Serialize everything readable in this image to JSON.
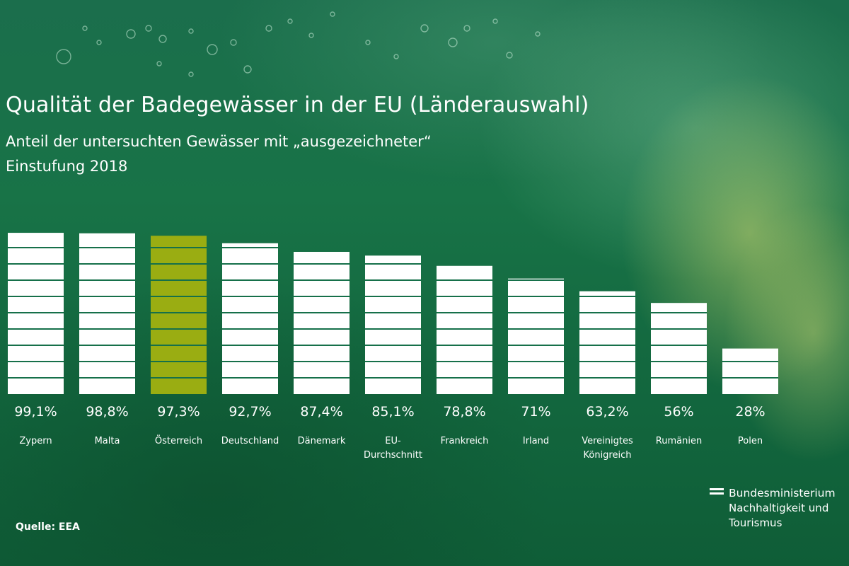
{
  "title": "Qualität der Badegewässer in der EU (Länderauswahl)",
  "subtitle_lines": [
    "Anteil der untersuchten Gewässer mit „ausgezeichneter“",
    "Einstufung 2018"
  ],
  "source": "Quelle: EEA",
  "logo": {
    "lines": [
      "Bundesministerium",
      "Nachhaltigkeit und",
      "Tourismus"
    ]
  },
  "colors": {
    "bar": "#ffffff",
    "highlight": "#9aad12",
    "background": "#16704a",
    "text": "#ffffff"
  },
  "chart_data": {
    "type": "bar",
    "title": "Qualität der Badegewässer in der EU (Länderauswahl)",
    "categories": [
      [
        "Zypern"
      ],
      [
        "Malta"
      ],
      [
        "Österreich"
      ],
      [
        "Deutschland"
      ],
      [
        "Dänemark"
      ],
      [
        "EU-",
        "Durchschnitt"
      ],
      [
        "Frankreich"
      ],
      [
        "Irland"
      ],
      [
        "Vereinigtes",
        "Königreich"
      ],
      [
        "Rumänien"
      ],
      [
        "Polen"
      ]
    ],
    "values": [
      99.1,
      98.8,
      97.3,
      92.7,
      87.4,
      85.1,
      78.8,
      71,
      63.2,
      56,
      28
    ],
    "value_labels": [
      "99,1%",
      "98,8%",
      "97,3%",
      "92,7%",
      "87,4%",
      "85,1%",
      "78,8%",
      "71%",
      "63,2%",
      "56%",
      "28%"
    ],
    "highlight": "Österreich",
    "unit": "%",
    "ylim": [
      0,
      100
    ],
    "grid": false,
    "xlabel": "",
    "ylabel": ""
  }
}
